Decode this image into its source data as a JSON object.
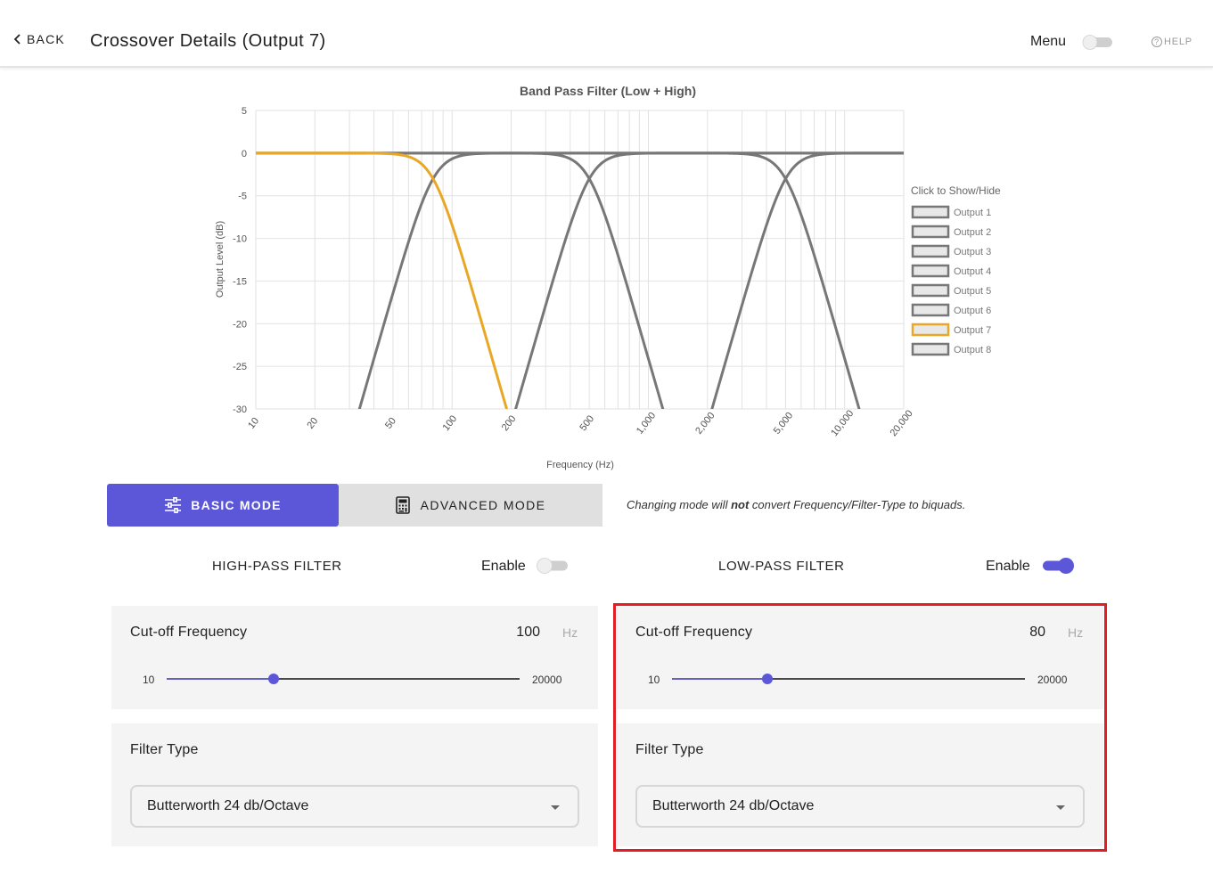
{
  "header": {
    "back_label": "BACK",
    "title": "Crossover Details (Output 7)",
    "menu_label": "Menu",
    "menu_toggle_on": false,
    "help_label": "HELP"
  },
  "chart_data": {
    "type": "line",
    "title": "Band Pass Filter (Low + High)",
    "xlabel": "Frequency (Hz)",
    "ylabel": "Output Level (dB)",
    "x_scale": "log",
    "xlim": [
      10,
      20000
    ],
    "ylim": [
      -30,
      5
    ],
    "x_ticks": [
      10,
      20,
      50,
      100,
      200,
      500,
      1000,
      2000,
      5000,
      10000,
      20000
    ],
    "x_tick_labels": [
      "10",
      "20",
      "50",
      "100",
      "200",
      "500",
      "1,000",
      "2,000",
      "5,000",
      "10,000",
      "20,000"
    ],
    "y_ticks": [
      5,
      0,
      -5,
      -10,
      -15,
      -20,
      -25,
      -30
    ],
    "grid": true,
    "legend_title": "Click to Show/Hide",
    "legend_placement": "right",
    "series": [
      {
        "name": "Output 1",
        "color": "#777777",
        "highlighted": false,
        "hp": null,
        "lp": null
      },
      {
        "name": "Output 2",
        "color": "#777777",
        "highlighted": false,
        "hp": 80,
        "lp": null
      },
      {
        "name": "Output 3",
        "color": "#777777",
        "highlighted": false,
        "hp": 500,
        "lp": null
      },
      {
        "name": "Output 4",
        "color": "#777777",
        "highlighted": false,
        "hp": 5000,
        "lp": null
      },
      {
        "name": "Output 5",
        "color": "#777777",
        "highlighted": false,
        "hp": null,
        "lp": 500
      },
      {
        "name": "Output 6",
        "color": "#777777",
        "highlighted": false,
        "hp": null,
        "lp": 5000
      },
      {
        "name": "Output 7",
        "color": "#e8a825",
        "highlighted": true,
        "hp": null,
        "lp": 80
      },
      {
        "name": "Output 8",
        "color": "#777777",
        "highlighted": false,
        "hp": null,
        "lp": null
      }
    ],
    "order_db_per_octave": 24
  },
  "modes": {
    "basic_label": "BASIC MODE",
    "advanced_label": "ADVANCED MODE",
    "active": "basic",
    "note_before": "Changing mode will ",
    "note_bold": "not",
    "note_after": " convert Frequency/Filter-Type to biquads."
  },
  "high_pass": {
    "title": "HIGH-PASS FILTER",
    "enable_label": "Enable",
    "enabled": false,
    "cutoff_label": "Cut-off Frequency",
    "cutoff_value": "100",
    "unit": "Hz",
    "range_min": "10",
    "range_max": "20000",
    "filter_type_label": "Filter Type",
    "filter_type_value": "Butterworth 24 db/Octave"
  },
  "low_pass": {
    "title": "LOW-PASS FILTER",
    "enable_label": "Enable",
    "enabled": true,
    "cutoff_label": "Cut-off Frequency",
    "cutoff_value": "80",
    "unit": "Hz",
    "range_min": "10",
    "range_max": "20000",
    "filter_type_label": "Filter Type",
    "filter_type_value": "Butterworth 24 db/Octave"
  },
  "colors": {
    "accent": "#5c57d9",
    "highlight_series": "#e8a825",
    "series_gray": "#777777",
    "zero_line": "#8b0000",
    "annotation_box": "#e11d26"
  }
}
